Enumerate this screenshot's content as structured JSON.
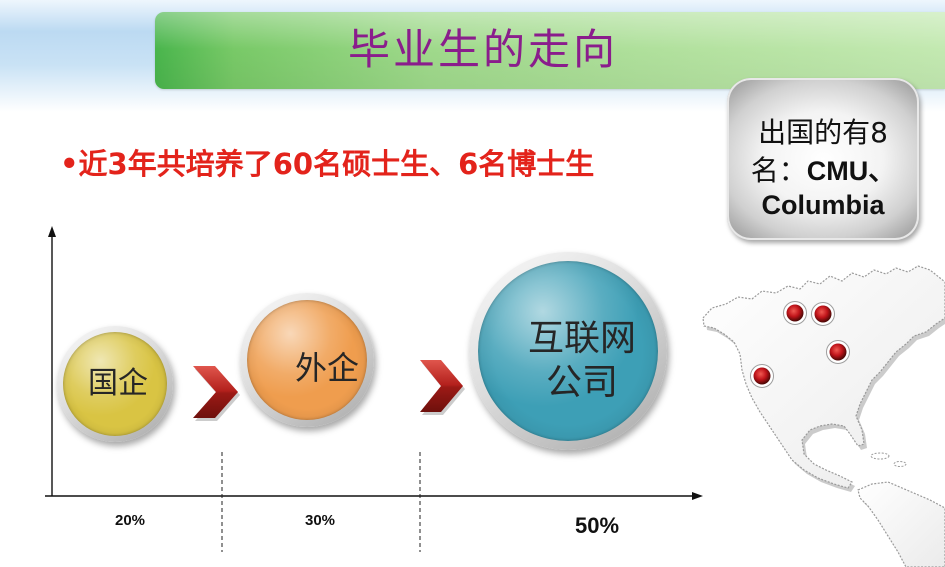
{
  "slide": {
    "title": "毕业生的走向",
    "bullet": {
      "marker": "•",
      "text": "近3年共培养了60名硕士生、6名博士生"
    },
    "abroad_note": {
      "line1": "出国的有8",
      "line2_prefix": "名：",
      "line2_emphasis": "CMU、",
      "line3_emphasis": "Columbia"
    }
  },
  "stages": [
    {
      "label_lines": [
        "国企"
      ],
      "percent": "20%"
    },
    {
      "label_lines": [
        "外企"
      ],
      "percent": "30%"
    },
    {
      "label_lines": [
        "互联网",
        "公司"
      ],
      "percent": "50%"
    }
  ],
  "colors": {
    "title": "#8a1d8c",
    "bullet": "#e3231b",
    "chevron": "#b3201c",
    "map_marker": "#c0141a",
    "stage_fill": [
      "#d9c443",
      "#ef9d4e",
      "#3d9fb6"
    ]
  },
  "icons": {
    "stage_arrow": "chevron-right-icon",
    "map_marker": "map-marker-icon",
    "illustration": "americas-map"
  }
}
